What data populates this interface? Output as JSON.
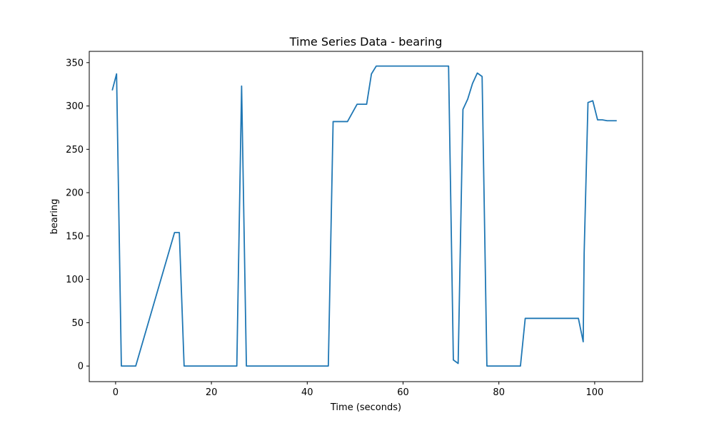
{
  "chart_data": {
    "type": "line",
    "title": "Time Series Data - bearing",
    "xlabel": "Time (seconds)",
    "ylabel": "bearing",
    "xlim": [
      -5.5,
      110
    ],
    "ylim": [
      -18,
      363
    ],
    "xticks": [
      0,
      20,
      40,
      60,
      80,
      100
    ],
    "yticks": [
      0,
      50,
      100,
      150,
      200,
      250,
      300,
      350
    ],
    "grid": false,
    "series": [
      {
        "color": "#1f77b4",
        "x": [
          -0.7,
          0.2,
          1.2,
          4.2,
          12.3,
          13.3,
          14.3,
          25.3,
          26.3,
          27.3,
          44.4,
          45.4,
          48.4,
          50.4,
          52.4,
          53.4,
          54.4,
          69.5,
          70.5,
          71.5,
          72.5,
          73.5,
          74.5,
          75.5,
          76.5,
          77.5,
          84.5,
          85.5,
          96.6,
          97.6,
          97.8,
          98.6,
          99.6,
          100.6,
          101.6,
          102.6,
          104.6
        ],
        "y": [
          318,
          337,
          0,
          0,
          154,
          154,
          0,
          0,
          323,
          0,
          0,
          282,
          282,
          302,
          302,
          337,
          346,
          346,
          7,
          3,
          296,
          308,
          326,
          338,
          334,
          0,
          0,
          55,
          55,
          28,
          130,
          304,
          306,
          284,
          284,
          283,
          283
        ]
      }
    ]
  }
}
